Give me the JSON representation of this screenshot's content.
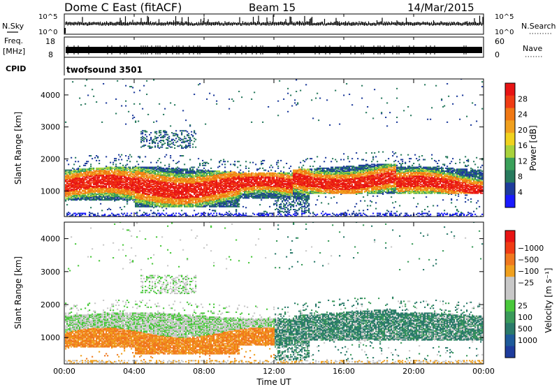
{
  "header": {
    "title": "Dome C East (fitACF)",
    "beam": "Beam 15",
    "date": "14/Mar/2015"
  },
  "panels": {
    "nsky": {
      "left_label": "N.Sky",
      "ticks_left": [
        "10^5",
        "10^0"
      ],
      "ticks_right": [
        "10^5",
        "10^0"
      ],
      "right_label": "N.Search"
    },
    "freq": {
      "left_label_1": "Freq.",
      "left_label_2": "[MHz]",
      "ticks_left": [
        "18",
        "8"
      ],
      "ticks_right": [
        "60",
        "0"
      ],
      "right_label": "Nave"
    },
    "cpid": {
      "label": "CPID",
      "value": "twofsound 3501"
    }
  },
  "colors": {
    "power": [
      "#1a1aff",
      "#1e3c9c",
      "#287a5e",
      "#3aa05a",
      "#a8d23c",
      "#f0d21e",
      "#f0a01e",
      "#f07814",
      "#f03c14",
      "#e81414"
    ],
    "velocity": [
      "#e81414",
      "#f03c14",
      "#f0781e",
      "#f0a01e",
      "#c8c8c8",
      "#c8c8c8",
      "#4ac83c",
      "#3a9a5a",
      "#2a7a6a",
      "#1e5a9a",
      "#1e3c9c"
    ]
  },
  "chart_data": [
    {
      "type": "heatmap",
      "name": "power",
      "ylabel": "Slant Range [km]",
      "y_ticks": [
        "1000",
        "2000",
        "3000",
        "4000"
      ],
      "ylim": [
        200,
        4500
      ],
      "colorbar_label": "Power [dB]",
      "colorbar_ticks": [
        "4",
        "8",
        "12",
        "16",
        "20",
        "24",
        "28"
      ],
      "colorbar_range": [
        0,
        32
      ]
    },
    {
      "type": "heatmap",
      "name": "velocity",
      "ylabel": "Slant Range [km]",
      "y_ticks": [
        "1000",
        "2000",
        "3000",
        "4000"
      ],
      "ylim": [
        200,
        4500
      ],
      "colorbar_label": "Velocity [m s⁻¹]",
      "colorbar_ticks": [
        "1000",
        "500",
        "100",
        "25",
        "−25",
        "−100",
        "−500",
        "−1000"
      ]
    }
  ],
  "x_axis": {
    "ticks": [
      "00:00",
      "04:00",
      "08:00",
      "12:00",
      "16:00",
      "20:00",
      "00:00"
    ],
    "label": "Time UT"
  }
}
